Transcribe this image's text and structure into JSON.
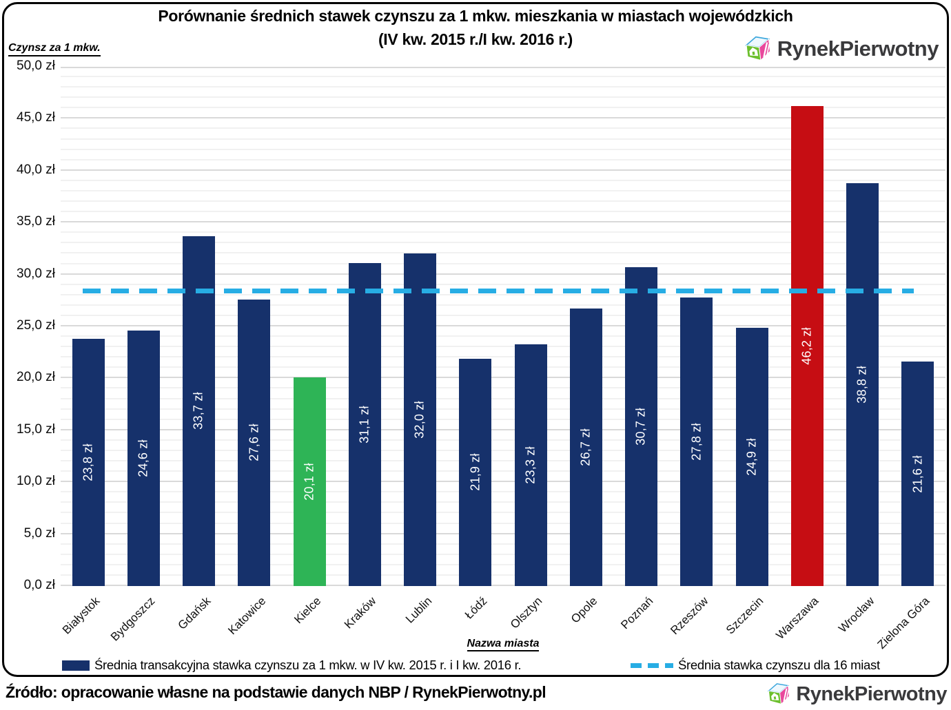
{
  "title": {
    "line1": "Porównanie średnich stawek czynszu za 1 mkw. mieszkania w miastach wojewódzkich",
    "line2": "(IV kw. 2015 r./I kw. 2016 r.)"
  },
  "axis": {
    "y_title": "Czynsz za 1 mkw.",
    "x_title": "Nazwa miasta"
  },
  "logo": {
    "text": "RynekPierwotny"
  },
  "legend": {
    "bars": "Średnia transakcyjna stawka czynszu za 1 mkw. w IV kw. 2015 r. i I kw. 2016 r.",
    "line": "Średnia stawka czynszu dla 16 miast"
  },
  "source": "Źródło: opracowanie własne na podstawie danych NBP / RynekPierwotny.pl",
  "colors": {
    "bar": "#16316b",
    "highlight_low": "#2eb456",
    "highlight_high": "#c60d13",
    "avg_line": "#27ade4"
  },
  "chart_data": {
    "type": "bar",
    "title": "Porównanie średnich stawek czynszu za 1 mkw. mieszkania w miastach wojewódzkich (IV kw. 2015 r./I kw. 2016 r.)",
    "xlabel": "Nazwa miasta",
    "ylabel": "Czynsz za 1 mkw.",
    "ylim": [
      0,
      50
    ],
    "ytick_step": 5,
    "grid": "horizontal, minor every 1, major every 5",
    "legend_position": "bottom",
    "categories": [
      "Białystok",
      "Bydgoszcz",
      "Gdańsk",
      "Katowice",
      "Kielce",
      "Kraków",
      "Lublin",
      "Łódź",
      "Olsztyn",
      "Opole",
      "Poznań",
      "Rzeszów",
      "Szczecin",
      "Warszawa",
      "Wrocław",
      "Zielona Góra"
    ],
    "values": [
      23.8,
      24.6,
      33.7,
      27.6,
      20.1,
      31.1,
      32.0,
      21.9,
      23.3,
      26.7,
      30.7,
      27.8,
      24.9,
      46.2,
      38.8,
      21.6
    ],
    "value_labels": [
      "23,8 zł",
      "24,6 zł",
      "33,7 zł",
      "27,6 zł",
      "20,1 zł",
      "31,1 zł",
      "32,0 zł",
      "21,9 zł",
      "23,3 zł",
      "26,7 zł",
      "30,7 zł",
      "27,8 zł",
      "24,9 zł",
      "46,2 zł",
      "38,8 zł",
      "21,6 zł"
    ],
    "special_bars": {
      "4": "highlight_low",
      "13": "highlight_high"
    },
    "series_name": "Średnia transakcyjna stawka czynszu za 1 mkw. w IV kw. 2015 r. i I kw. 2016 r.",
    "reference_line": {
      "value": 28.4,
      "name": "Średnia stawka czynszu dla 16 miast"
    },
    "yticks": [
      "0,0 zł",
      "5,0 zł",
      "10,0 zł",
      "15,0 zł",
      "20,0 zł",
      "25,0 zł",
      "30,0 zł",
      "35,0 zł",
      "40,0 zł",
      "45,0 zł",
      "50,0 zł"
    ]
  }
}
